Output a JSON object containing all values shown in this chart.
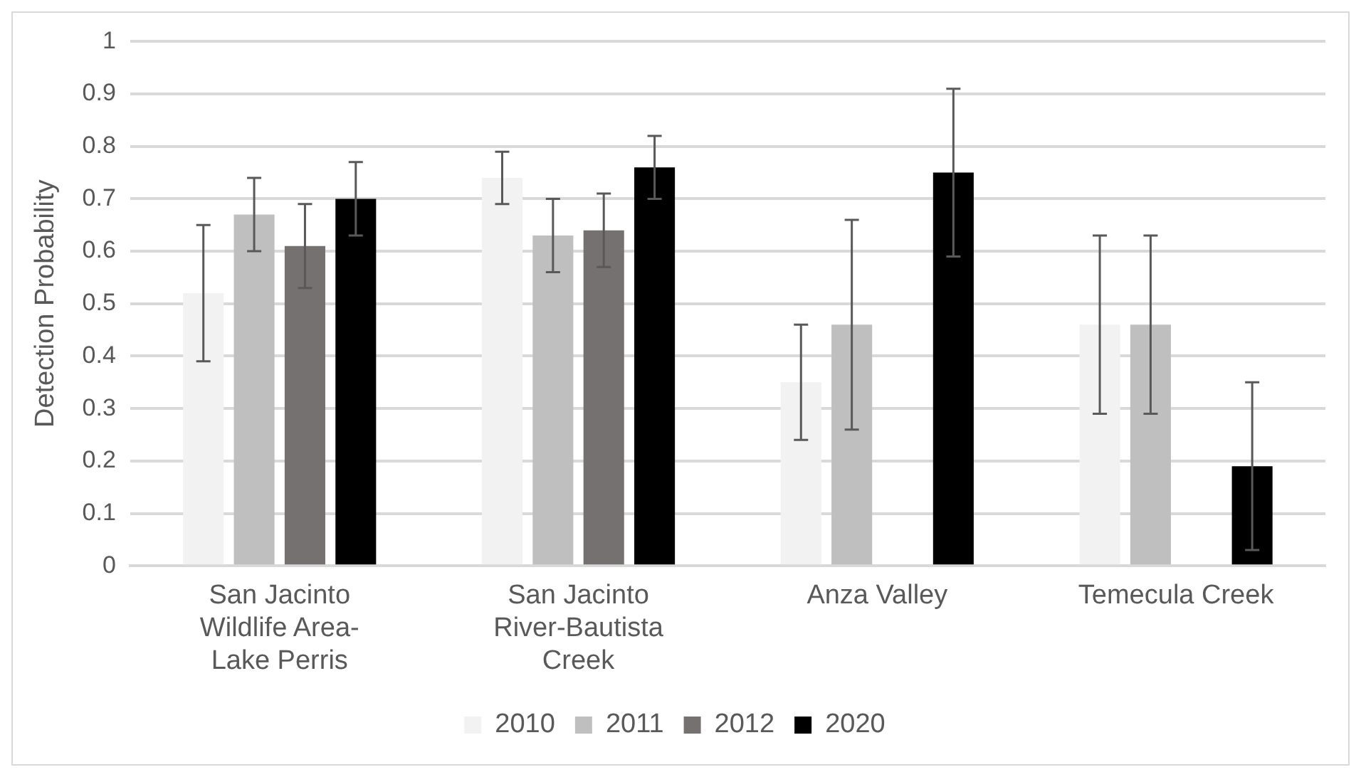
{
  "chart_data": {
    "type": "bar",
    "ylabel": "Detection Probability",
    "categories": [
      "San Jacinto Wildlife Area-Lake Perris",
      "San Jacinto River-Bautista Creek",
      "Anza Valley",
      "Temecula Creek"
    ],
    "series": [
      {
        "name": "2010",
        "color": "#f2f2f2",
        "values": [
          0.52,
          0.74,
          0.35,
          0.46
        ],
        "errors": [
          [
            0.39,
            0.65
          ],
          [
            0.69,
            0.79
          ],
          [
            0.24,
            0.46
          ],
          [
            0.29,
            0.63
          ]
        ]
      },
      {
        "name": "2011",
        "color": "#bfbfbf",
        "values": [
          0.67,
          0.63,
          0.46,
          0.46
        ],
        "errors": [
          [
            0.6,
            0.74
          ],
          [
            0.56,
            0.7
          ],
          [
            0.26,
            0.66
          ],
          [
            0.29,
            0.63
          ]
        ]
      },
      {
        "name": "2012",
        "color": "#767171",
        "values": [
          0.61,
          0.64,
          null,
          null
        ],
        "errors": [
          [
            0.53,
            0.69
          ],
          [
            0.57,
            0.71
          ],
          null,
          null
        ]
      },
      {
        "name": "2020",
        "color": "#000000",
        "values": [
          0.7,
          0.76,
          0.75,
          0.19
        ],
        "errors": [
          [
            0.63,
            0.77
          ],
          [
            0.7,
            0.82
          ],
          [
            0.59,
            0.91
          ],
          [
            0.03,
            0.35
          ]
        ]
      }
    ],
    "ylim": [
      0,
      1
    ],
    "yticks": [
      0,
      0.1,
      0.2,
      0.3,
      0.4,
      0.5,
      0.6,
      0.7,
      0.8,
      0.9,
      1
    ],
    "grid": "y",
    "legend": "bottom"
  }
}
